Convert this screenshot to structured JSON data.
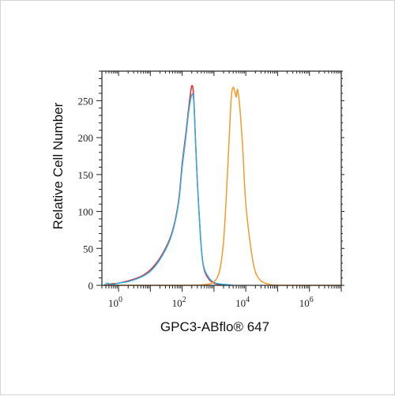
{
  "chart_data": {
    "type": "line",
    "title": "",
    "xlabel": "GPC3-ABflo® 647",
    "ylabel": "Relative Cell Number",
    "x_scale": "log",
    "xlim": [
      0.3,
      10000000
    ],
    "ylim": [
      0,
      290
    ],
    "x_ticks": [
      {
        "value": 1,
        "base": "10",
        "exp": "0"
      },
      {
        "value": 100,
        "base": "10",
        "exp": "2"
      },
      {
        "value": 10000,
        "base": "10",
        "exp": "4"
      },
      {
        "value": 1000000,
        "base": "10",
        "exp": "6"
      }
    ],
    "y_ticks": [
      "0",
      "50",
      "100",
      "150",
      "200",
      "250"
    ],
    "y_tick_values": [
      0,
      50,
      100,
      150,
      200,
      250
    ],
    "grid": false,
    "series": [
      {
        "color": "#e8262d",
        "x": [
          0.4,
          0.6,
          1,
          2,
          5,
          10,
          20,
          40,
          60,
          80,
          100,
          130,
          160,
          200,
          230,
          260,
          300,
          360,
          420,
          500,
          700,
          1000,
          1500,
          2000
        ],
        "y": [
          0,
          2,
          3,
          6,
          12,
          21,
          37,
          62,
          88,
          120,
          165,
          205,
          240,
          270,
          255,
          200,
          140,
          80,
          40,
          20,
          8,
          3,
          1,
          0
        ]
      },
      {
        "color": "#2ab0e0",
        "x": [
          0.35,
          0.45,
          0.6,
          1,
          2,
          5,
          10,
          20,
          40,
          60,
          80,
          100,
          130,
          160,
          200,
          230,
          260,
          300,
          360,
          420,
          500,
          700,
          1000,
          1500,
          2500,
          4000
        ],
        "y": [
          0,
          3,
          1,
          3,
          5,
          11,
          19,
          35,
          60,
          86,
          117,
          160,
          200,
          235,
          258,
          250,
          200,
          140,
          78,
          40,
          22,
          10,
          4,
          2,
          1,
          0
        ]
      },
      {
        "color": "#f59a2b",
        "x": [
          0.35,
          100,
          500,
          1000,
          1500,
          2000,
          2500,
          3000,
          3500,
          4000,
          4500,
          5000,
          5500,
          6500,
          8000,
          10000,
          15000,
          20000,
          30000,
          50000,
          100000,
          1000000,
          10000000
        ],
        "y": [
          0,
          0,
          1,
          5,
          20,
          60,
          130,
          200,
          255,
          268,
          262,
          255,
          265,
          240,
          185,
          110,
          45,
          18,
          6,
          2,
          0,
          0,
          0
        ]
      }
    ]
  }
}
